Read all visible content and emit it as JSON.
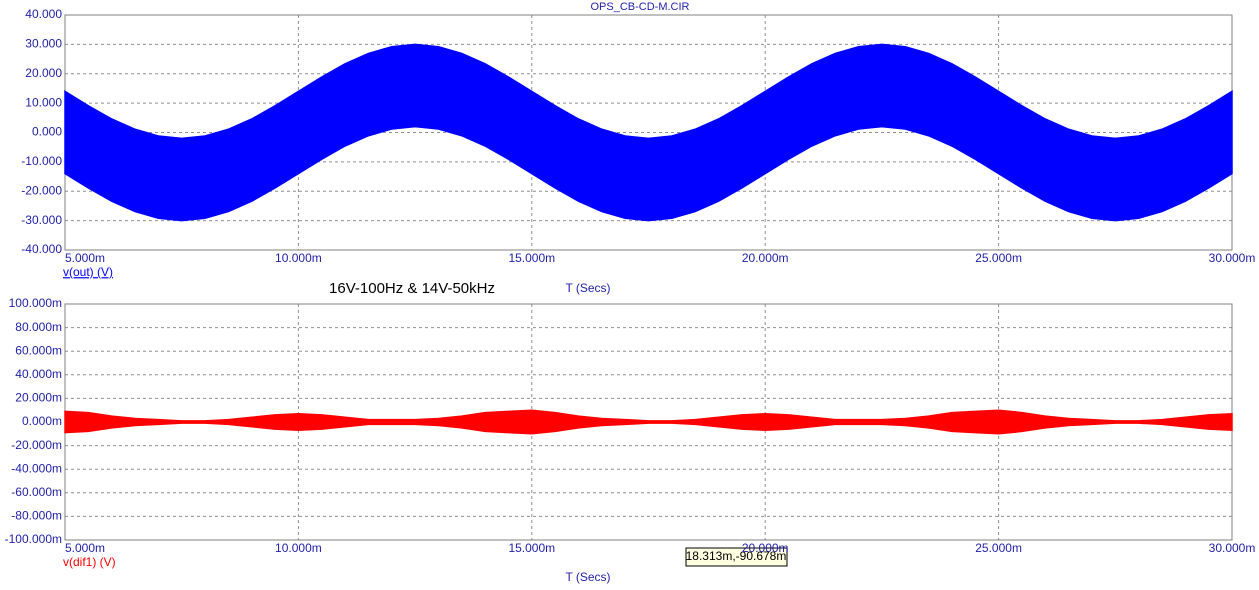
{
  "chart_data": [
    {
      "type": "band",
      "title": "OPS_CB-CD-M.CIR",
      "annotation": "16V-100Hz & 14V-50kHz",
      "xlabel": "T (Secs)",
      "grid": true,
      "xlim": [
        0.005,
        0.03
      ],
      "ylim": [
        -40,
        40
      ],
      "xticks": [
        {
          "value": 0.005,
          "label": "5.000m"
        },
        {
          "value": 0.01,
          "label": "10.000m"
        },
        {
          "value": 0.015,
          "label": "15.000m"
        },
        {
          "value": 0.02,
          "label": "20.000m"
        },
        {
          "value": 0.025,
          "label": "25.000m"
        },
        {
          "value": 0.03,
          "label": "30.000m"
        }
      ],
      "yticks": [
        {
          "value": 40,
          "label": "40.000"
        },
        {
          "value": 30,
          "label": "30.000"
        },
        {
          "value": 20,
          "label": "20.000"
        },
        {
          "value": 10,
          "label": "10.000"
        },
        {
          "value": 0,
          "label": "0.000"
        },
        {
          "value": -10,
          "label": "-10.000"
        },
        {
          "value": -20,
          "label": "-20.000"
        },
        {
          "value": -30,
          "label": "-30.000"
        },
        {
          "value": -40,
          "label": "-40.000"
        }
      ],
      "x": [
        0.005,
        0.0055,
        0.006,
        0.0065,
        0.007,
        0.0075,
        0.008,
        0.0085,
        0.009,
        0.0095,
        0.01,
        0.0105,
        0.011,
        0.0115,
        0.012,
        0.0125,
        0.013,
        0.0135,
        0.014,
        0.0145,
        0.015,
        0.0155,
        0.016,
        0.0165,
        0.017,
        0.0175,
        0.018,
        0.0185,
        0.019,
        0.0195,
        0.02,
        0.0205,
        0.021,
        0.0215,
        0.022,
        0.0225,
        0.023,
        0.0235,
        0.024,
        0.0245,
        0.025,
        0.0255,
        0.026,
        0.0265,
        0.027,
        0.0275,
        0.028,
        0.0285,
        0.029,
        0.0295,
        0.03
      ],
      "series": [
        {
          "name": "v(out) (V)",
          "color": "#0000ff",
          "upper": [
            14,
            9.1,
            4.6,
            1.1,
            -1.2,
            -2,
            -1.2,
            1.1,
            4.6,
            9.1,
            14,
            18.9,
            23.4,
            26.9,
            29.2,
            30,
            29.2,
            26.9,
            23.4,
            18.9,
            14,
            9.1,
            4.6,
            1.1,
            -1.2,
            -2,
            -1.2,
            1.1,
            4.6,
            9.1,
            14,
            18.9,
            23.4,
            26.9,
            29.2,
            30,
            29.2,
            26.9,
            23.4,
            18.9,
            14,
            9.1,
            4.6,
            1.1,
            -1.2,
            -2,
            -1.2,
            1.1,
            4.6,
            9.1,
            14
          ],
          "lower": [
            -14,
            -18.9,
            -23.4,
            -26.9,
            -29.2,
            -30,
            -29.2,
            -26.9,
            -23.4,
            -18.9,
            -14,
            -9.1,
            -4.6,
            -1.1,
            1.2,
            2,
            1.2,
            -1.1,
            -4.6,
            -9.1,
            -14,
            -18.9,
            -23.4,
            -26.9,
            -29.2,
            -30,
            -29.2,
            -26.9,
            -23.4,
            -18.9,
            -14,
            -9.1,
            -4.6,
            -1.1,
            1.2,
            2,
            1.2,
            -1.1,
            -4.6,
            -9.1,
            -14,
            -18.9,
            -23.4,
            -26.9,
            -29.2,
            -30,
            -29.2,
            -26.9,
            -23.4,
            -18.9,
            -14
          ]
        }
      ]
    },
    {
      "type": "band",
      "xlabel": "T (Secs)",
      "annotation": "18.313m,-90.678m",
      "grid": true,
      "xlim": [
        0.005,
        0.03
      ],
      "ylim": [
        -0.1,
        0.1
      ],
      "xticks": [
        {
          "value": 0.005,
          "label": "5.000m"
        },
        {
          "value": 0.01,
          "label": "10.000m"
        },
        {
          "value": 0.015,
          "label": "15.000m"
        },
        {
          "value": 0.02,
          "label": "20.000m"
        },
        {
          "value": 0.025,
          "label": "25.000m"
        },
        {
          "value": 0.03,
          "label": "30.000m"
        }
      ],
      "yticks": [
        {
          "value": 0.1,
          "label": "100.000m"
        },
        {
          "value": 0.08,
          "label": "80.000m"
        },
        {
          "value": 0.06,
          "label": "60.000m"
        },
        {
          "value": 0.04,
          "label": "40.000m"
        },
        {
          "value": 0.02,
          "label": "20.000m"
        },
        {
          "value": 0,
          "label": "0.000m"
        },
        {
          "value": -0.02,
          "label": "-20.000m"
        },
        {
          "value": -0.04,
          "label": "-40.000m"
        },
        {
          "value": -0.06,
          "label": "-60.000m"
        },
        {
          "value": -0.08,
          "label": "-80.000m"
        },
        {
          "value": -0.1,
          "label": "-100.000m"
        }
      ],
      "x": [
        0.005,
        0.0055,
        0.006,
        0.0065,
        0.007,
        0.0075,
        0.008,
        0.0085,
        0.009,
        0.0095,
        0.01,
        0.0105,
        0.011,
        0.0115,
        0.012,
        0.0125,
        0.013,
        0.0135,
        0.014,
        0.0145,
        0.015,
        0.0155,
        0.016,
        0.0165,
        0.017,
        0.0175,
        0.018,
        0.0185,
        0.019,
        0.0195,
        0.02,
        0.0205,
        0.021,
        0.0215,
        0.022,
        0.0225,
        0.023,
        0.0235,
        0.024,
        0.0245,
        0.025,
        0.0255,
        0.026,
        0.0265,
        0.027,
        0.0275,
        0.028,
        0.0285,
        0.029,
        0.0295,
        0.03
      ],
      "series": [
        {
          "name": "v(dif1) (V)",
          "color": "#ff0000",
          "upper": [
            0.009,
            0.008,
            0.005,
            0.003,
            0.002,
            0.001,
            0.001,
            0.002,
            0.004,
            0.006,
            0.007,
            0.006,
            0.004,
            0.002,
            0.002,
            0.002,
            0.003,
            0.005,
            0.008,
            0.009,
            0.01,
            0.008,
            0.005,
            0.003,
            0.002,
            0.001,
            0.001,
            0.002,
            0.004,
            0.006,
            0.007,
            0.006,
            0.004,
            0.002,
            0.002,
            0.002,
            0.003,
            0.005,
            0.008,
            0.009,
            0.01,
            0.008,
            0.005,
            0.003,
            0.002,
            0.001,
            0.001,
            0.002,
            0.004,
            0.006,
            0.007
          ],
          "lower": [
            -0.009,
            -0.008,
            -0.005,
            -0.003,
            -0.002,
            -0.001,
            -0.001,
            -0.002,
            -0.004,
            -0.006,
            -0.007,
            -0.006,
            -0.004,
            -0.002,
            -0.002,
            -0.002,
            -0.003,
            -0.005,
            -0.008,
            -0.009,
            -0.01,
            -0.008,
            -0.005,
            -0.003,
            -0.002,
            -0.001,
            -0.001,
            -0.002,
            -0.004,
            -0.006,
            -0.007,
            -0.006,
            -0.004,
            -0.002,
            -0.002,
            -0.002,
            -0.003,
            -0.005,
            -0.008,
            -0.009,
            -0.01,
            -0.008,
            -0.005,
            -0.003,
            -0.002,
            -0.001,
            -0.001,
            -0.002,
            -0.004,
            -0.006,
            -0.007
          ]
        }
      ]
    }
  ]
}
